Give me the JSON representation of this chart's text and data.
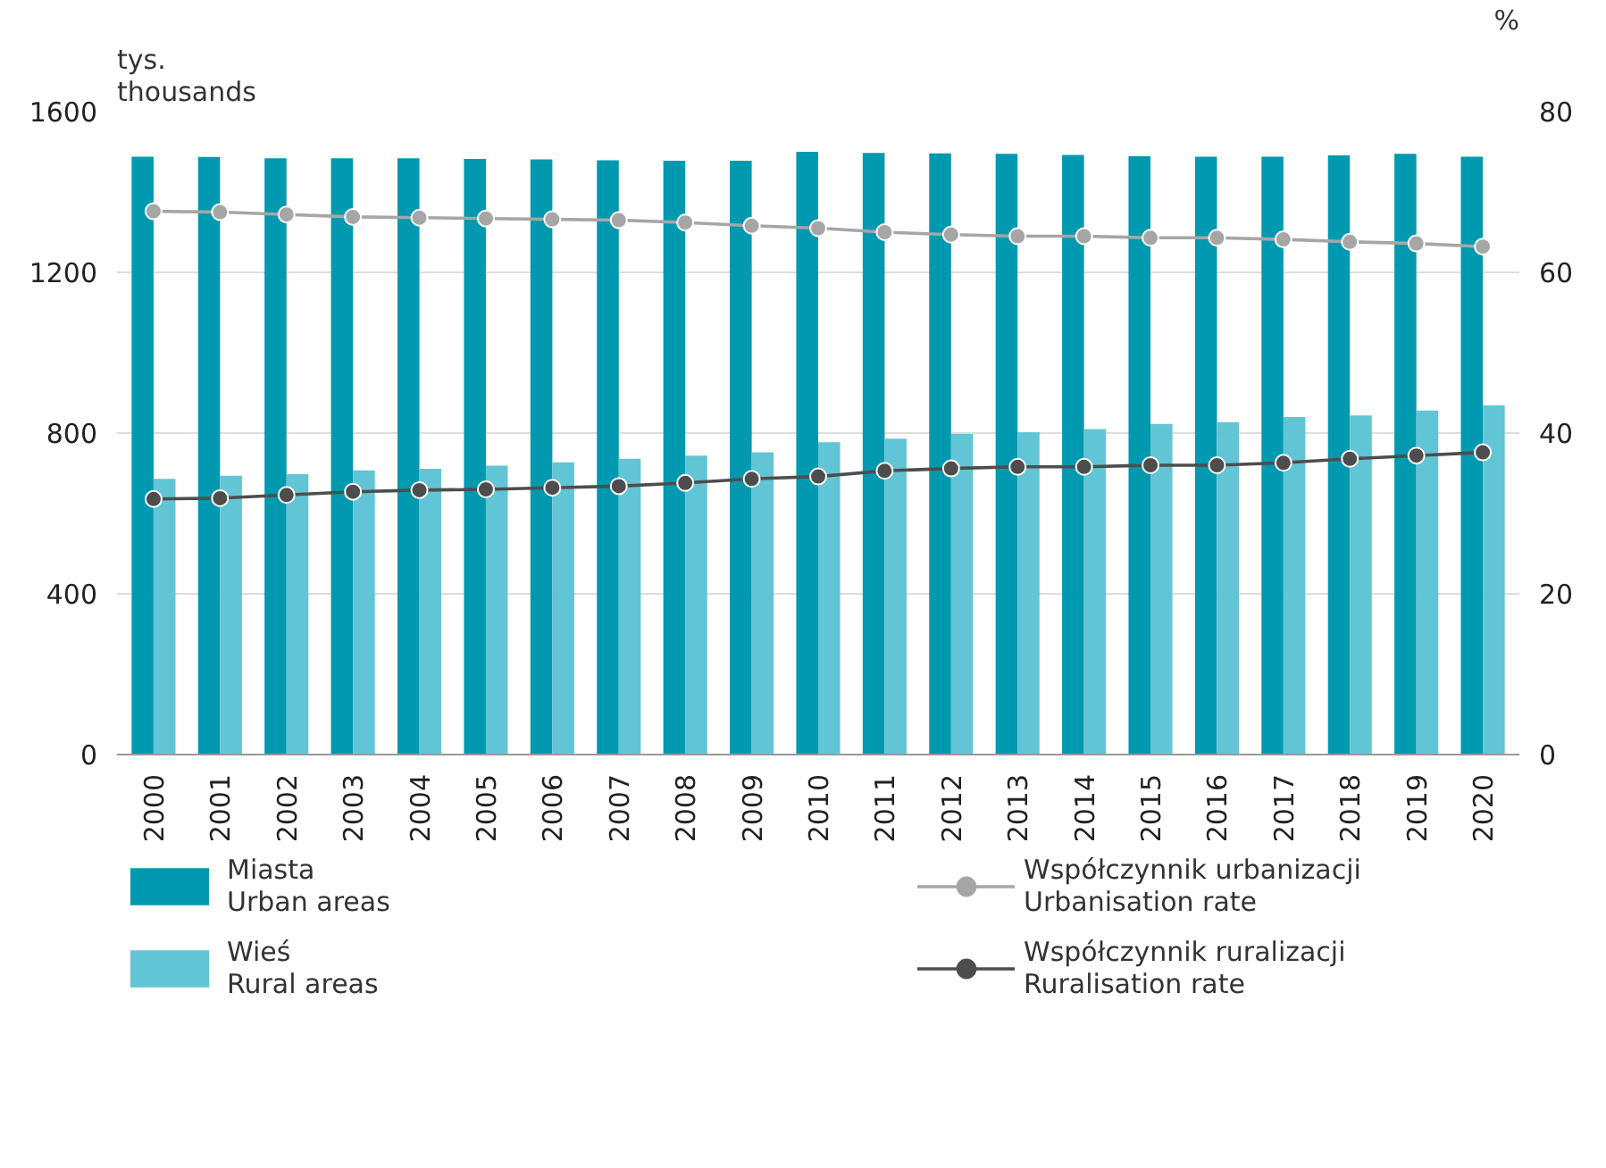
{
  "chart_data": {
    "type": "bar",
    "ylabel": "tys.\nthousands",
    "y2label": "%",
    "categories": [
      "2000",
      "2001",
      "2002",
      "2003",
      "2004",
      "2005",
      "2006",
      "2007",
      "2008",
      "2009",
      "2010",
      "2011",
      "2012",
      "2013",
      "2014",
      "2015",
      "2016",
      "2017",
      "2018",
      "2019",
      "2020"
    ],
    "ylim": [
      0,
      1600
    ],
    "yticks": [
      0,
      400,
      800,
      1200,
      1600
    ],
    "y2lim": [
      0,
      80
    ],
    "y2ticks": [
      0,
      20,
      40,
      60,
      80
    ],
    "grid": "y",
    "legend": "bottom",
    "marker": "circle",
    "series": [
      {
        "name": "Miasta\nUrban areas",
        "color": "#0099b0",
        "values": [
          1488,
          1487,
          1484,
          1484,
          1484,
          1482,
          1481,
          1479,
          1478,
          1478,
          1500,
          1497,
          1496,
          1495,
          1492,
          1489,
          1488,
          1488,
          1491,
          1495,
          1488
        ]
      },
      {
        "name": "Wieś\nRural areas",
        "color": "#62c5d5",
        "values": [
          686,
          694,
          698,
          707,
          711,
          719,
          727,
          736,
          744,
          752,
          777,
          786,
          798,
          802,
          810,
          823,
          827,
          840,
          844,
          856,
          869
        ]
      },
      {
        "type": "line",
        "axis": "y2",
        "name": "Współczynnik urbanizacji\nUrbanisation rate",
        "color": "#a6a6a6",
        "values": [
          67.6,
          67.5,
          67.2,
          66.9,
          66.8,
          66.7,
          66.6,
          66.5,
          66.2,
          65.8,
          65.5,
          65.0,
          64.7,
          64.5,
          64.5,
          64.3,
          64.3,
          64.1,
          63.8,
          63.6,
          63.2
        ]
      },
      {
        "type": "line",
        "axis": "y2",
        "name": "Współczynnik ruralizacji\nRuralisation rate",
        "color": "#4d4d4d",
        "values": [
          31.8,
          31.9,
          32.3,
          32.7,
          32.9,
          33.0,
          33.2,
          33.4,
          33.8,
          34.3,
          34.6,
          35.3,
          35.6,
          35.8,
          35.8,
          36.0,
          36.0,
          36.3,
          36.8,
          37.2,
          37.6
        ]
      }
    ]
  }
}
